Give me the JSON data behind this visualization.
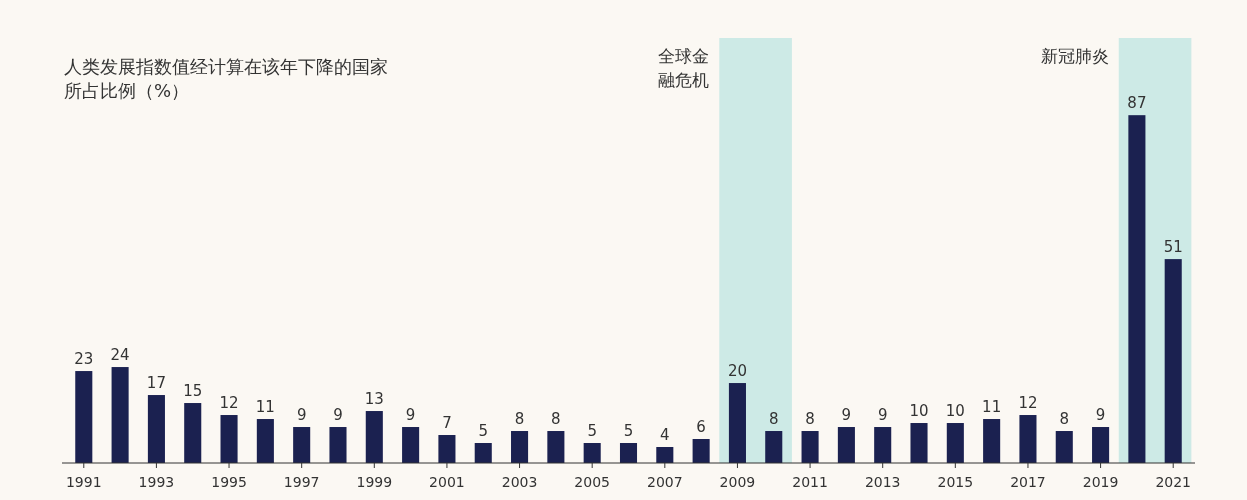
{
  "chart_data": {
    "type": "bar",
    "title": "人类发展指数值经计算在该年下降的国家所占比例（%）",
    "x": [
      1991,
      1992,
      1993,
      1994,
      1995,
      1996,
      1997,
      1998,
      1999,
      2000,
      2001,
      2002,
      2003,
      2004,
      2005,
      2006,
      2007,
      2008,
      2009,
      2010,
      2011,
      2012,
      2013,
      2014,
      2015,
      2016,
      2017,
      2018,
      2019,
      2020,
      2021
    ],
    "values": [
      23,
      24,
      17,
      15,
      12,
      11,
      9,
      9,
      13,
      9,
      7,
      5,
      8,
      8,
      5,
      5,
      4,
      6,
      20,
      8,
      8,
      9,
      9,
      10,
      10,
      11,
      12,
      8,
      9,
      87,
      51
    ],
    "color": "#1b2150",
    "xlim": [
      1990.4,
      2021.6
    ],
    "xticks": [
      1991,
      1993,
      1995,
      1997,
      1999,
      2001,
      2003,
      2005,
      2007,
      2009,
      2011,
      2013,
      2015,
      2017,
      2019,
      2021
    ],
    "bands": [
      {
        "axis": "x",
        "from": 2008.5,
        "to": 2010.5,
        "label": "全球金融危机",
        "color": "#cdeae6"
      },
      {
        "axis": "x",
        "from": 2019.5,
        "to": 2021.5,
        "label": "新冠肺炎",
        "color": "#cdeae6"
      }
    ],
    "data_labels": true
  }
}
